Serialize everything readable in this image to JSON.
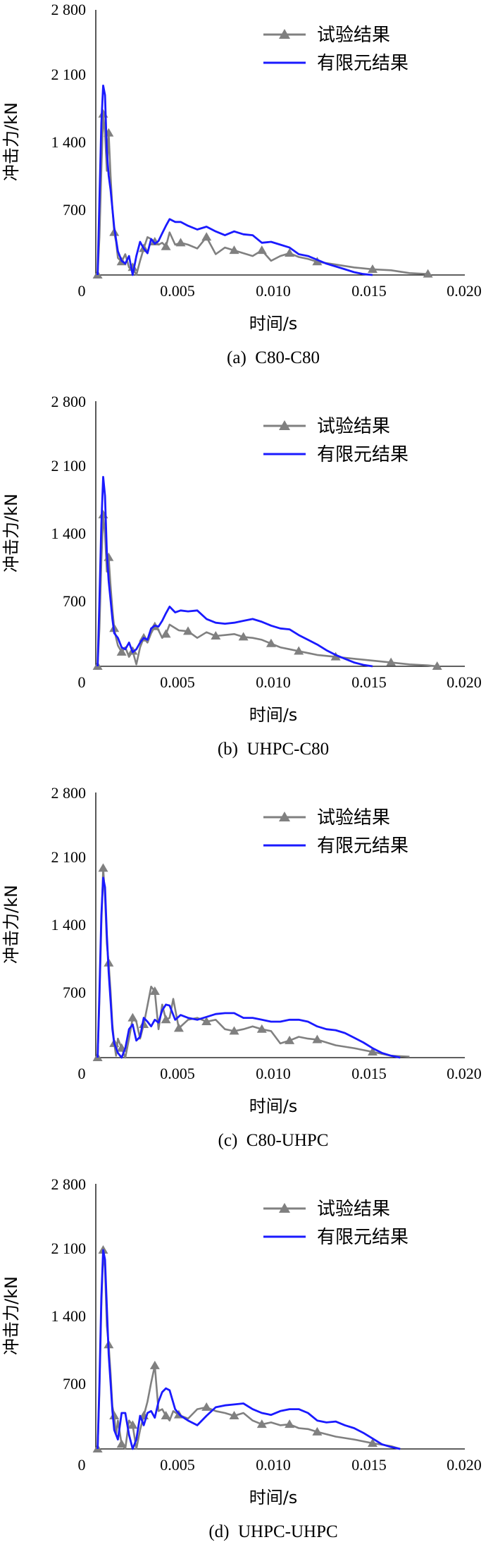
{
  "chart_data": [
    {
      "type": "line",
      "caption": "(a)  C80-C80",
      "xlabel": "时间/s",
      "ylabel": "冲击力/kN",
      "xlim": [
        0,
        0.02
      ],
      "ylim": [
        0,
        2800
      ],
      "x_ticks": [
        "0",
        "0.005",
        "0.010",
        "0.015",
        "0.020"
      ],
      "y_ticks": [
        "2 800",
        "2 100",
        "1 400",
        "700"
      ],
      "legend_position": "top-right",
      "series": [
        {
          "name": "试验结果",
          "color": "#808080",
          "marker": "triangle",
          "x": [
            0.0001,
            0.0002,
            0.0003,
            0.0004,
            0.0005,
            0.0006,
            0.0007,
            0.0008,
            0.0009,
            0.001,
            0.0011,
            0.0012,
            0.0014,
            0.0016,
            0.0018,
            0.002,
            0.0022,
            0.0024,
            0.0026,
            0.0028,
            0.003,
            0.0032,
            0.0034,
            0.0036,
            0.0038,
            0.004,
            0.0043,
            0.0046,
            0.005,
            0.0055,
            0.006,
            0.0065,
            0.007,
            0.0075,
            0.008,
            0.0085,
            0.009,
            0.0095,
            0.01,
            0.0105,
            0.011,
            0.0115,
            0.012,
            0.013,
            0.014,
            0.015,
            0.016,
            0.017,
            0.018
          ],
          "y": [
            0,
            400,
            1100,
            1700,
            1500,
            1100,
            1500,
            1050,
            700,
            450,
            350,
            180,
            140,
            220,
            80,
            80,
            0,
            150,
            280,
            400,
            380,
            350,
            320,
            340,
            300,
            450,
            320,
            340,
            320,
            280,
            400,
            220,
            290,
            260,
            230,
            200,
            260,
            150,
            200,
            230,
            190,
            170,
            140,
            110,
            80,
            60,
            50,
            20,
            10
          ]
        },
        {
          "name": "有限元结果",
          "color": "#1a1aff",
          "marker": "none",
          "x": [
            0.0001,
            0.0002,
            0.0003,
            0.0004,
            0.0005,
            0.0006,
            0.0007,
            0.0008,
            0.0009,
            0.001,
            0.0012,
            0.0014,
            0.0016,
            0.0018,
            0.002,
            0.0022,
            0.0024,
            0.0026,
            0.0028,
            0.003,
            0.0032,
            0.0034,
            0.0036,
            0.0038,
            0.004,
            0.0043,
            0.0046,
            0.005,
            0.0055,
            0.006,
            0.0065,
            0.007,
            0.0075,
            0.008,
            0.0085,
            0.009,
            0.0095,
            0.01,
            0.0105,
            0.011,
            0.0115,
            0.012,
            0.0125,
            0.013,
            0.0135,
            0.014,
            0.0145,
            0.015
          ],
          "y": [
            0,
            800,
            1600,
            2000,
            1900,
            1300,
            1050,
            900,
            700,
            500,
            250,
            150,
            120,
            200,
            0,
            200,
            350,
            280,
            230,
            380,
            330,
            360,
            440,
            520,
            590,
            560,
            560,
            520,
            480,
            510,
            460,
            420,
            460,
            430,
            420,
            340,
            350,
            320,
            290,
            220,
            200,
            160,
            120,
            90,
            60,
            30,
            10,
            0
          ]
        }
      ]
    },
    {
      "type": "line",
      "caption": "(b)  UHPC-C80",
      "xlabel": "时间/s",
      "ylabel": "冲击力/kN",
      "xlim": [
        0,
        0.02
      ],
      "ylim": [
        0,
        2800
      ],
      "x_ticks": [
        "0",
        "0.005",
        "0.010",
        "0.015",
        "0.020"
      ],
      "y_ticks": [
        "2 800",
        "2 100",
        "1 400",
        "700"
      ],
      "legend_position": "top-right",
      "series": [
        {
          "name": "试验结果",
          "color": "#808080",
          "marker": "triangle",
          "x": [
            0.0001,
            0.0002,
            0.0003,
            0.0004,
            0.0005,
            0.0006,
            0.0007,
            0.0008,
            0.0009,
            0.001,
            0.0011,
            0.0012,
            0.0014,
            0.0016,
            0.0018,
            0.002,
            0.0022,
            0.0024,
            0.0026,
            0.0028,
            0.003,
            0.0032,
            0.0034,
            0.0036,
            0.0038,
            0.004,
            0.0045,
            0.005,
            0.0055,
            0.006,
            0.0065,
            0.007,
            0.0075,
            0.008,
            0.0085,
            0.009,
            0.0095,
            0.01,
            0.0105,
            0.011,
            0.0115,
            0.012,
            0.013,
            0.014,
            0.015,
            0.016,
            0.017,
            0.018,
            0.0185
          ],
          "y": [
            0,
            400,
            1100,
            1600,
            1400,
            1000,
            1150,
            850,
            600,
            400,
            300,
            220,
            150,
            200,
            100,
            160,
            20,
            200,
            300,
            250,
            350,
            420,
            380,
            300,
            340,
            440,
            380,
            370,
            300,
            360,
            320,
            330,
            340,
            310,
            300,
            280,
            240,
            200,
            180,
            160,
            140,
            120,
            100,
            80,
            60,
            40,
            20,
            10,
            0
          ]
        },
        {
          "name": "有限元结果",
          "color": "#1a1aff",
          "marker": "none",
          "x": [
            0.0001,
            0.0002,
            0.0003,
            0.0004,
            0.0005,
            0.0006,
            0.0007,
            0.0008,
            0.0009,
            0.001,
            0.0012,
            0.0014,
            0.0016,
            0.0018,
            0.002,
            0.0022,
            0.0024,
            0.0026,
            0.0028,
            0.003,
            0.0032,
            0.0034,
            0.0036,
            0.0038,
            0.004,
            0.0043,
            0.0046,
            0.005,
            0.0055,
            0.006,
            0.0065,
            0.007,
            0.0075,
            0.008,
            0.0085,
            0.009,
            0.0095,
            0.01,
            0.0105,
            0.011,
            0.0115,
            0.012,
            0.0125,
            0.013,
            0.0135,
            0.014,
            0.0145,
            0.015
          ],
          "y": [
            0,
            700,
            1500,
            2000,
            1800,
            1200,
            900,
            700,
            500,
            350,
            300,
            200,
            180,
            250,
            150,
            180,
            250,
            300,
            280,
            400,
            430,
            420,
            480,
            560,
            630,
            570,
            590,
            580,
            590,
            500,
            460,
            450,
            460,
            480,
            500,
            470,
            430,
            400,
            390,
            330,
            280,
            230,
            170,
            120,
            80,
            40,
            15,
            0
          ]
        }
      ]
    },
    {
      "type": "line",
      "caption": "(c)  C80-UHPC",
      "xlabel": "时间/s",
      "ylabel": "冲击力/kN",
      "xlim": [
        0,
        0.02
      ],
      "ylim": [
        0,
        2800
      ],
      "x_ticks": [
        "0",
        "0.005",
        "0.010",
        "0.015",
        "0.020"
      ],
      "y_ticks": [
        "2 800",
        "2 100",
        "1 400",
        "700"
      ],
      "legend_position": "top-right",
      "series": [
        {
          "name": "试验结果",
          "color": "#808080",
          "marker": "triangle",
          "x": [
            0.0001,
            0.0002,
            0.0003,
            0.0004,
            0.0005,
            0.0006,
            0.0007,
            0.0008,
            0.0009,
            0.001,
            0.0011,
            0.0012,
            0.0014,
            0.0016,
            0.0018,
            0.002,
            0.0022,
            0.0024,
            0.0026,
            0.0028,
            0.003,
            0.0032,
            0.0034,
            0.0036,
            0.0038,
            0.004,
            0.0042,
            0.0045,
            0.005,
            0.0055,
            0.006,
            0.0065,
            0.007,
            0.0075,
            0.008,
            0.0085,
            0.009,
            0.0095,
            0.01,
            0.0105,
            0.011,
            0.0115,
            0.012,
            0.013,
            0.014,
            0.015,
            0.016,
            0.017
          ],
          "y": [
            0,
            600,
            1400,
            2000,
            1700,
            1200,
            1000,
            700,
            350,
            150,
            20,
            200,
            100,
            0,
            200,
            420,
            380,
            200,
            350,
            550,
            750,
            700,
            300,
            560,
            400,
            420,
            620,
            310,
            400,
            420,
            380,
            400,
            300,
            280,
            300,
            330,
            300,
            280,
            150,
            180,
            220,
            200,
            190,
            130,
            100,
            60,
            20,
            10
          ]
        },
        {
          "name": "有限元结果",
          "color": "#1a1aff",
          "marker": "none",
          "x": [
            0.0001,
            0.0002,
            0.0003,
            0.0004,
            0.0005,
            0.0006,
            0.0007,
            0.0008,
            0.0009,
            0.001,
            0.0012,
            0.0014,
            0.0016,
            0.0018,
            0.002,
            0.0022,
            0.0024,
            0.0026,
            0.0028,
            0.003,
            0.0032,
            0.0034,
            0.0036,
            0.0038,
            0.004,
            0.0043,
            0.0046,
            0.005,
            0.0055,
            0.006,
            0.0065,
            0.007,
            0.0075,
            0.008,
            0.0085,
            0.009,
            0.0095,
            0.01,
            0.0105,
            0.011,
            0.0115,
            0.012,
            0.0125,
            0.013,
            0.0135,
            0.014,
            0.0145,
            0.015,
            0.0155,
            0.016,
            0.0165
          ],
          "y": [
            0,
            700,
            1500,
            1900,
            1800,
            1300,
            900,
            600,
            300,
            150,
            50,
            0,
            100,
            300,
            350,
            180,
            220,
            420,
            380,
            330,
            400,
            370,
            500,
            560,
            550,
            400,
            450,
            420,
            400,
            430,
            460,
            470,
            470,
            420,
            420,
            400,
            380,
            380,
            400,
            400,
            380,
            330,
            300,
            290,
            260,
            210,
            160,
            100,
            50,
            20,
            0
          ]
        }
      ]
    },
    {
      "type": "line",
      "caption": "(d)  UHPC-UHPC",
      "xlabel": "时间/s",
      "ylabel": "冲击力/kN",
      "xlim": [
        0,
        0.02
      ],
      "ylim": [
        0,
        2800
      ],
      "x_ticks": [
        "0",
        "0.005",
        "0.010",
        "0.015",
        "0.020"
      ],
      "y_ticks": [
        "2 800",
        "2 100",
        "1 400",
        "700"
      ],
      "legend_position": "top-right",
      "series": [
        {
          "name": "试验结果",
          "color": "#808080",
          "marker": "triangle",
          "x": [
            0.0001,
            0.0002,
            0.0003,
            0.0004,
            0.0005,
            0.0006,
            0.0007,
            0.0008,
            0.0009,
            0.001,
            0.0011,
            0.0012,
            0.0014,
            0.0016,
            0.0018,
            0.002,
            0.0022,
            0.0024,
            0.0026,
            0.0028,
            0.003,
            0.0032,
            0.0034,
            0.0036,
            0.0038,
            0.004,
            0.0042,
            0.0045,
            0.005,
            0.0055,
            0.006,
            0.0065,
            0.007,
            0.0075,
            0.008,
            0.0085,
            0.009,
            0.0095,
            0.01,
            0.0105,
            0.011,
            0.0115,
            0.012,
            0.013,
            0.014,
            0.015,
            0.016,
            0.0165
          ],
          "y": [
            0,
            600,
            1500,
            2100,
            1900,
            1300,
            1100,
            800,
            450,
            350,
            150,
            300,
            50,
            0,
            300,
            250,
            0,
            200,
            350,
            500,
            700,
            880,
            400,
            420,
            350,
            300,
            400,
            360,
            320,
            420,
            440,
            400,
            380,
            350,
            380,
            300,
            260,
            280,
            250,
            260,
            220,
            210,
            180,
            130,
            100,
            60,
            30,
            0
          ]
        },
        {
          "name": "有限元结果",
          "color": "#1a1aff",
          "marker": "none",
          "x": [
            0.0001,
            0.0002,
            0.0003,
            0.0004,
            0.0005,
            0.0006,
            0.0007,
            0.0008,
            0.0009,
            0.001,
            0.0012,
            0.0014,
            0.0016,
            0.0018,
            0.002,
            0.0022,
            0.0024,
            0.0026,
            0.0028,
            0.003,
            0.0032,
            0.0034,
            0.0036,
            0.0038,
            0.004,
            0.0043,
            0.0046,
            0.005,
            0.0055,
            0.006,
            0.0065,
            0.007,
            0.0075,
            0.008,
            0.0085,
            0.009,
            0.0095,
            0.01,
            0.0105,
            0.011,
            0.0115,
            0.012,
            0.0125,
            0.013,
            0.0135,
            0.014,
            0.0145,
            0.015,
            0.0155,
            0.016,
            0.0165
          ],
          "y": [
            0,
            700,
            1600,
            2100,
            2000,
            1500,
            1000,
            700,
            400,
            200,
            100,
            380,
            380,
            150,
            0,
            100,
            350,
            250,
            380,
            400,
            330,
            500,
            600,
            640,
            620,
            420,
            350,
            300,
            250,
            350,
            440,
            460,
            470,
            480,
            420,
            380,
            360,
            400,
            420,
            420,
            380,
            300,
            280,
            290,
            250,
            220,
            170,
            110,
            50,
            20,
            0
          ]
        }
      ]
    }
  ]
}
